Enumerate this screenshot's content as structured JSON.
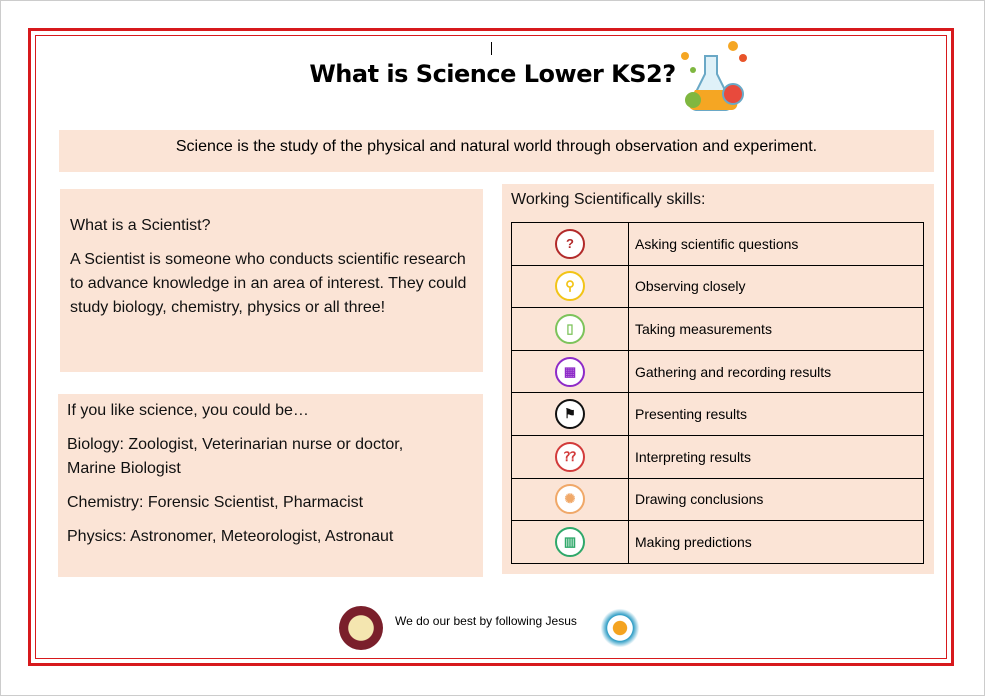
{
  "title": "What is Science Lower KS2?",
  "definition": "Science is the study of the physical and natural world through observation and experiment.",
  "scientist": {
    "heading": "What is a Scientist?",
    "body": "A Scientist is someone who conducts scientific research to advance knowledge in an area of interest. They could study biology, chemistry, physics or all three!"
  },
  "careers": {
    "heading": "If you like science, you could be…",
    "items": [
      "Biology: Zoologist, Veterinarian nurse or doctor, Marine Biologist",
      "Chemistry: Forensic Scientist, Pharmacist",
      "Physics: Astronomer, Meteorologist, Astronaut"
    ]
  },
  "skills": {
    "heading": "Working Scientifically skills:",
    "items": [
      {
        "label": "Asking scientific questions",
        "icon": "question-speech-icon",
        "color": "#b22a2a",
        "glyph": "?"
      },
      {
        "label": "Observing closely",
        "icon": "magnifier-icon",
        "color": "#f2c417",
        "glyph": "⚲"
      },
      {
        "label": "Taking measurements",
        "icon": "ruler-icon",
        "color": "#7dc35b",
        "glyph": "▯"
      },
      {
        "label": "Gathering and recording results",
        "icon": "table-icon",
        "color": "#8e2bc8",
        "glyph": "▦"
      },
      {
        "label": "Presenting results",
        "icon": "presenter-icon",
        "color": "#111111",
        "glyph": "⚑"
      },
      {
        "label": "Interpreting results",
        "icon": "speech-bubbles-icon",
        "color": "#d23a3a",
        "glyph": "⁇"
      },
      {
        "label": "Drawing conclusions",
        "icon": "lightbulb-icon",
        "color": "#f0a868",
        "glyph": "✺"
      },
      {
        "label": "Making predictions",
        "icon": "bar-chart-icon",
        "color": "#2fa86a",
        "glyph": "▥"
      }
    ]
  },
  "footer": {
    "motto": "We do our best by following Jesus"
  }
}
